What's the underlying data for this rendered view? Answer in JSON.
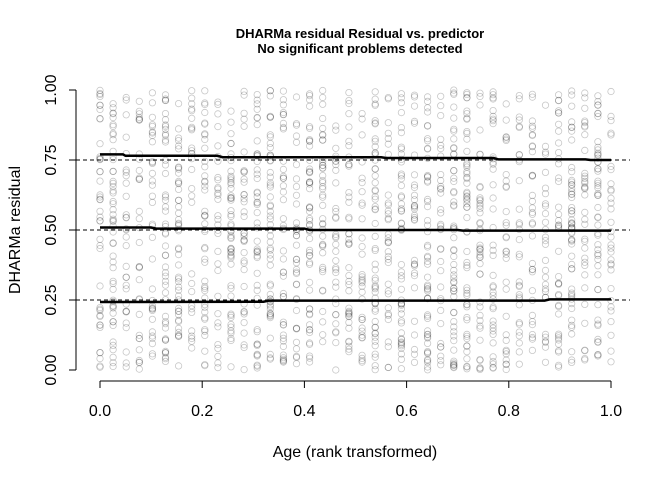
{
  "chart_data": {
    "type": "scatter",
    "title": "DHARMa residual Residual vs. predictor",
    "subtitle": "No significant problems detected",
    "xlabel": "Age (rank transformed)",
    "ylabel": "DHARMa residual",
    "xlim": [
      0,
      1
    ],
    "ylim": [
      0,
      1
    ],
    "x_ticks": [
      "0.0",
      "0.2",
      "0.4",
      "0.6",
      "0.8",
      "1.0"
    ],
    "y_ticks": [
      "0.00",
      "0.25",
      "0.50",
      "0.75",
      "1.00"
    ],
    "grid": false,
    "point_style": "open circles, semi-transparent grey",
    "n_x_positions": 40,
    "reference_lines": [
      0.25,
      0.5,
      0.75
    ],
    "quantile_lines": [
      {
        "name": "0.25",
        "points": [
          [
            0.0,
            0.243
          ],
          [
            0.32,
            0.244
          ],
          [
            0.33,
            0.248
          ],
          [
            0.87,
            0.248
          ],
          [
            0.88,
            0.252
          ],
          [
            1.0,
            0.252
          ]
        ]
      },
      {
        "name": "0.5",
        "points": [
          [
            0.0,
            0.509
          ],
          [
            0.1,
            0.509
          ],
          [
            0.11,
            0.505
          ],
          [
            0.4,
            0.505
          ],
          [
            0.41,
            0.5
          ],
          [
            0.7,
            0.5
          ],
          [
            0.71,
            0.498
          ],
          [
            1.0,
            0.498
          ]
        ]
      },
      {
        "name": "0.75",
        "points": [
          [
            0.0,
            0.77
          ],
          [
            0.045,
            0.77
          ],
          [
            0.05,
            0.765
          ],
          [
            0.23,
            0.765
          ],
          [
            0.24,
            0.76
          ],
          [
            0.55,
            0.76
          ],
          [
            0.56,
            0.757
          ],
          [
            0.77,
            0.757
          ],
          [
            0.78,
            0.752
          ],
          [
            0.95,
            0.752
          ],
          [
            0.96,
            0.75
          ],
          [
            1.0,
            0.75
          ]
        ]
      }
    ]
  }
}
